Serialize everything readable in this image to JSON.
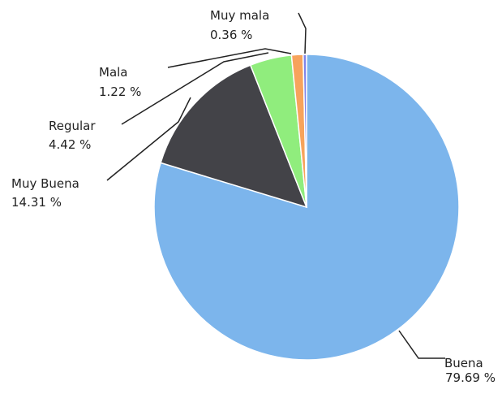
{
  "chart_data": {
    "type": "pie",
    "title": "",
    "start": "top, clockwise",
    "unit": "%",
    "slices": [
      {
        "label": "Buena",
        "value": 79.69,
        "value_text": "79.69 %",
        "color": "#7cb5ec"
      },
      {
        "label": "Muy Buena",
        "value": 14.31,
        "value_text": "14.31 %",
        "color": "#434348"
      },
      {
        "label": "Regular",
        "value": 4.42,
        "value_text": "4.42 %",
        "color": "#90ed7d"
      },
      {
        "label": "Mala",
        "value": 1.22,
        "value_text": "1.22 %",
        "color": "#f7a35c"
      },
      {
        "label": "Muy mala",
        "value": 0.36,
        "value_text": "0.36 %",
        "color": "#8085e9"
      }
    ]
  }
}
